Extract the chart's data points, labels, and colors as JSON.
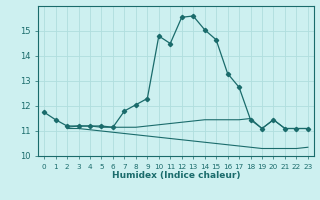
{
  "xlabel": "Humidex (Indice chaleur)",
  "bg_color": "#cdf0f0",
  "line_color": "#1a6b6b",
  "grid_color": "#b0dede",
  "xlim": [
    -0.5,
    23.5
  ],
  "ylim": [
    10,
    16
  ],
  "yticks": [
    10,
    11,
    12,
    13,
    14,
    15
  ],
  "xticks": [
    0,
    1,
    2,
    3,
    4,
    5,
    6,
    7,
    8,
    9,
    10,
    11,
    12,
    13,
    14,
    15,
    16,
    17,
    18,
    19,
    20,
    21,
    22,
    23
  ],
  "curve1_x": [
    0,
    1,
    2,
    3,
    4,
    5,
    6,
    7,
    8,
    9,
    10,
    11,
    12,
    13,
    14,
    15,
    16,
    17,
    18,
    19,
    20,
    21,
    22,
    23
  ],
  "curve1_y": [
    11.75,
    11.45,
    11.2,
    11.2,
    11.2,
    11.2,
    11.15,
    11.8,
    12.05,
    12.3,
    14.8,
    14.5,
    15.55,
    15.6,
    15.05,
    14.65,
    13.3,
    12.75,
    11.45,
    11.1,
    11.45,
    11.1,
    11.1,
    11.1
  ],
  "curve2_x": [
    2,
    3,
    4,
    5,
    6,
    7,
    8,
    9,
    10,
    11,
    12,
    13,
    14,
    15,
    16,
    17,
    18,
    19,
    20,
    21,
    22,
    23
  ],
  "curve2_y": [
    11.15,
    11.2,
    11.2,
    11.15,
    11.15,
    11.15,
    11.15,
    11.2,
    11.25,
    11.3,
    11.35,
    11.4,
    11.45,
    11.45,
    11.45,
    11.45,
    11.5,
    11.1,
    11.45,
    11.1,
    11.1,
    11.1
  ],
  "curve3_x": [
    2,
    3,
    4,
    5,
    6,
    7,
    8,
    9,
    10,
    11,
    12,
    13,
    14,
    15,
    16,
    17,
    18,
    19,
    20,
    21,
    22,
    23
  ],
  "curve3_y": [
    11.1,
    11.1,
    11.05,
    11.0,
    10.95,
    10.9,
    10.85,
    10.8,
    10.75,
    10.7,
    10.65,
    10.6,
    10.55,
    10.5,
    10.45,
    10.4,
    10.35,
    10.3,
    10.3,
    10.3,
    10.3,
    10.35
  ]
}
